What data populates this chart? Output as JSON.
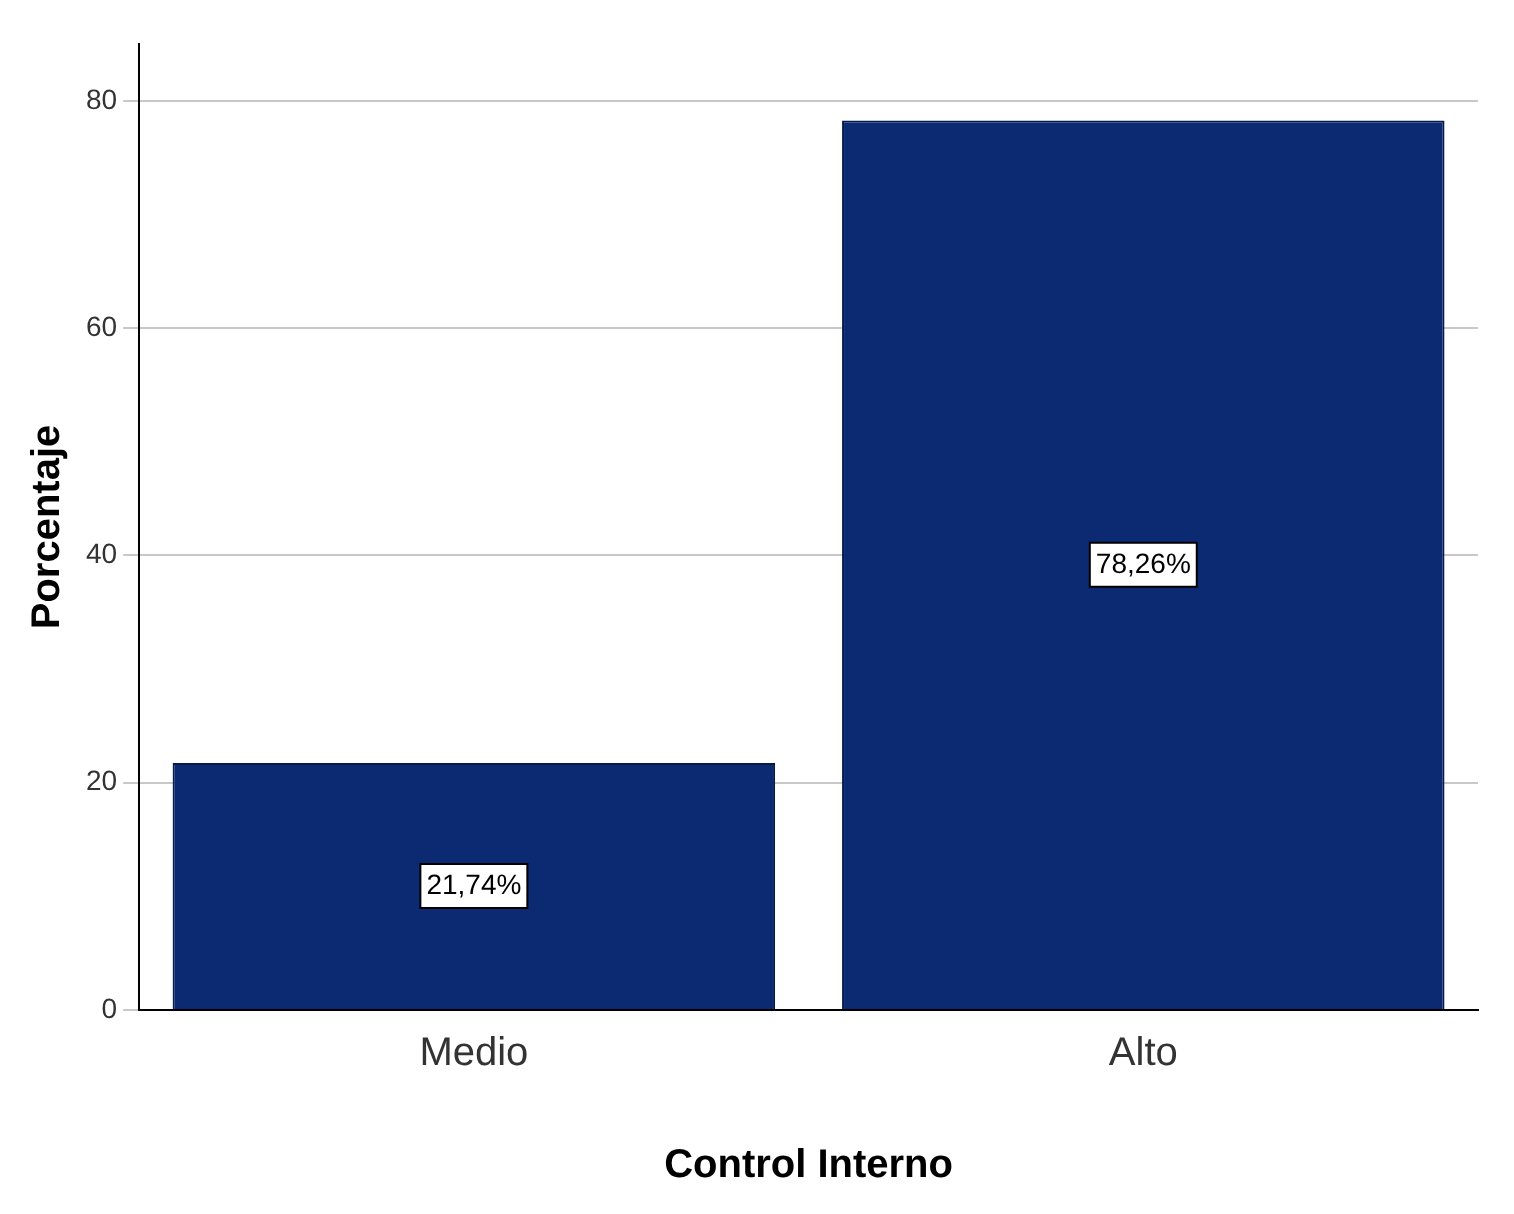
{
  "chart_data": {
    "type": "bar",
    "xlabel": "Control Interno",
    "ylabel": "Porcentaje",
    "categories": [
      "Medio",
      "Alto"
    ],
    "values": [
      21.74,
      78.26
    ],
    "value_labels": [
      "21,74%",
      "78,26%"
    ],
    "color": "#0b2a72",
    "ylim": [
      0,
      85
    ],
    "yticks": [
      0,
      20,
      40,
      60,
      80
    ],
    "grid": "y",
    "legend": false
  }
}
